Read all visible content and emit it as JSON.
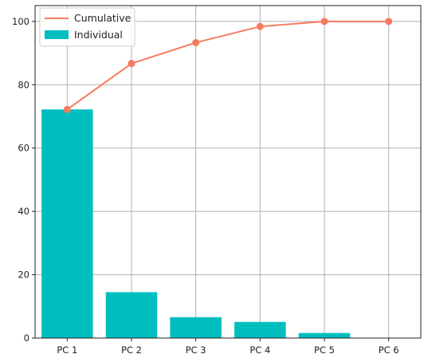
{
  "chart_data": {
    "type": "bar",
    "categories": [
      "PC 1",
      "PC 2",
      "PC 3",
      "PC 4",
      "PC 5",
      "PC 6"
    ],
    "series": [
      {
        "name": "Individual",
        "type": "bar",
        "values": [
          72.2,
          14.5,
          6.6,
          5.1,
          1.6,
          0.0
        ]
      },
      {
        "name": "Cumulative",
        "type": "line",
        "values": [
          72.2,
          86.7,
          93.3,
          98.4,
          100.0,
          100.0
        ]
      }
    ],
    "ylim": [
      0,
      105
    ],
    "yticks": [
      0,
      20,
      40,
      60,
      80,
      100
    ],
    "grid": true,
    "legend_position": "top-left",
    "colors": {
      "bar": "#00bebe",
      "line": "#f47b5e",
      "grid": "#b0b0b0",
      "axis": "#222222"
    }
  }
}
